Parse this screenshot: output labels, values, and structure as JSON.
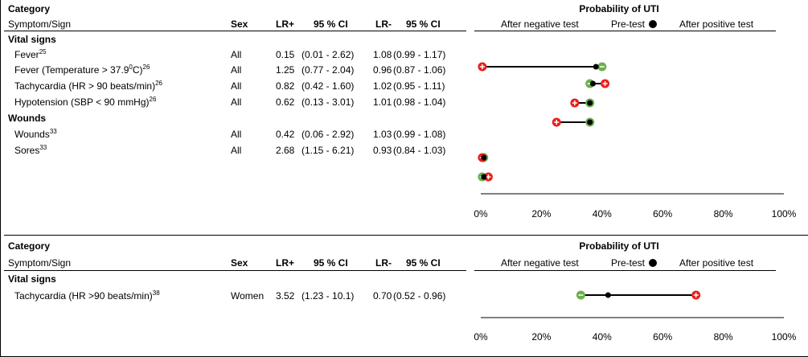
{
  "panels": [
    {
      "headers": {
        "category": "Category",
        "symptom": "Symptom/Sign",
        "sex": "Sex",
        "lr_pos": "LR+",
        "ci_pos": "95 % CI",
        "lr_neg": "LR-",
        "ci_neg": "95 % CI",
        "prob_title": "Probability of UTI",
        "after_negative": "After negative test",
        "pretest": "Pre-test",
        "after_positive": "After positive test"
      },
      "axis_ticks": [
        "0%",
        "20%",
        "40%",
        "60%",
        "80%",
        "100%"
      ],
      "groups": [
        {
          "name": "Vital signs",
          "rows": [
            {
              "label": "Fever",
              "sup": "25",
              "sex": "All",
              "lr_pos": "0.15",
              "ci_pos": "(0.01 - 2.62)",
              "lr_neg": "1.08",
              "ci_neg": "(0.99 - 1.17)"
            },
            {
              "label": "Fever (Temperature > 37.9",
              "deg": "0",
              "label_tail": "C)",
              "sup": "26",
              "sex": "All",
              "lr_pos": "1.25",
              "ci_pos": "(0.77 - 2.04)",
              "lr_neg": "0.96",
              "ci_neg": "(0.87 - 1.06)"
            },
            {
              "label": "Tachycardia (HR > 90 beats/min)",
              "sup": "26",
              "sex": "All",
              "lr_pos": "0.82",
              "ci_pos": "(0.42 - 1.60)",
              "lr_neg": "1.02",
              "ci_neg": "(0.95 - 1.11)"
            },
            {
              "label": "Hypotension (SBP < 90 mmHg)",
              "sup": "26",
              "sex": "All",
              "lr_pos": "0.62",
              "ci_pos": "(0.13 - 3.01)",
              "lr_neg": "1.01",
              "ci_neg": "(0.98 - 1.04)"
            }
          ]
        },
        {
          "name": "Wounds",
          "rows": [
            {
              "label": "Wounds",
              "sup": "33",
              "sex": "All",
              "lr_pos": "0.42",
              "ci_pos": "(0.06 - 2.92)",
              "lr_neg": "1.03",
              "ci_neg": "(0.99 - 1.08)"
            },
            {
              "label": "Sores",
              "sup": "33",
              "sex": "All",
              "lr_pos": "2.68",
              "ci_pos": "(1.15 - 6.21)",
              "lr_neg": "0.93",
              "ci_neg": "(0.84 - 1.03)"
            }
          ]
        }
      ]
    },
    {
      "headers": {
        "category": "Category",
        "symptom": "Symptom/Sign",
        "sex": "Sex",
        "lr_pos": "LR+",
        "ci_pos": "95 % CI",
        "lr_neg": "LR-",
        "ci_neg": "95 % CI",
        "prob_title": "Probability of UTI",
        "after_negative": "After negative test",
        "pretest": "Pre-test",
        "after_positive": "After positive test"
      },
      "axis_ticks": [
        "0%",
        "20%",
        "40%",
        "60%",
        "80%",
        "100%"
      ],
      "groups": [
        {
          "name": "Vital signs",
          "rows": [
            {
              "label": "Tachycardia (HR >90 beats/min)",
              "sup": "38",
              "sex": "Women",
              "lr_pos": "3.52",
              "ci_pos": "(1.23 - 10.1)",
              "lr_neg": "0.70",
              "ci_neg": "(0.52 - 0.96)"
            }
          ]
        }
      ]
    }
  ],
  "colors": {
    "negative": "#6ab04c",
    "pretest": "#000000",
    "positive": "#e8201a"
  },
  "chart_data": [
    {
      "type": "scatter",
      "title": "Probability of UTI",
      "xlim": [
        0,
        100
      ],
      "x_unit": "%",
      "series_keys": [
        "after_negative",
        "pretest",
        "after_positive"
      ],
      "rows": [
        {
          "label": "Fever",
          "pretest": 38,
          "after_negative": 40,
          "after_positive": 0.5
        },
        {
          "label": "Fever (Temperature > 37.9°C)",
          "pretest": 37,
          "after_negative": 36,
          "after_positive": 41
        },
        {
          "label": "Tachycardia (HR > 90 beats/min)",
          "pretest": 36,
          "after_negative": 36,
          "after_positive": 31
        },
        {
          "label": "Hypotension (SBP < 90 mmHg)",
          "pretest": 36,
          "after_negative": 36,
          "after_positive": 25
        },
        {
          "label": "Wounds",
          "pretest": 1,
          "after_negative": 1,
          "after_positive": 0.5
        },
        {
          "label": "Sores",
          "pretest": 1,
          "after_negative": 0.5,
          "after_positive": 2.5
        }
      ]
    },
    {
      "type": "scatter",
      "title": "Probability of UTI",
      "xlim": [
        0,
        100
      ],
      "x_unit": "%",
      "series_keys": [
        "after_negative",
        "pretest",
        "after_positive"
      ],
      "rows": [
        {
          "label": "Tachycardia (HR >90 beats/min)",
          "pretest": 42,
          "after_negative": 33,
          "after_positive": 71
        }
      ]
    }
  ]
}
